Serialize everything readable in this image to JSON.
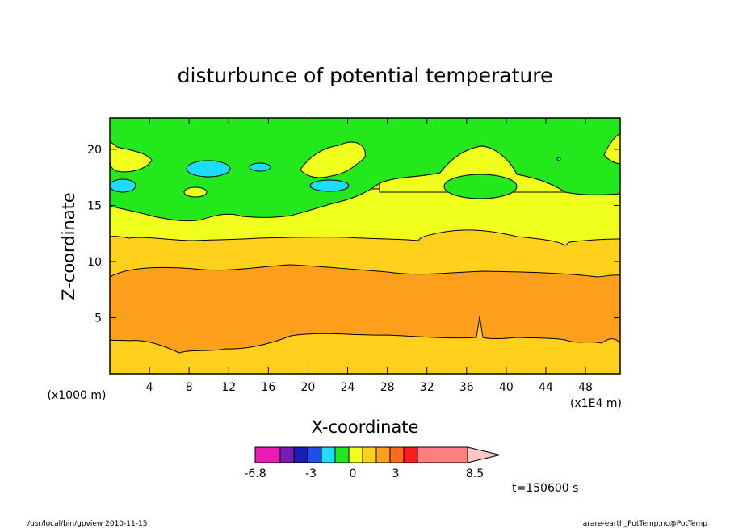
{
  "chart_data": {
    "type": "heatmap",
    "title": "disturbunce of potential temperature",
    "xlabel": "X-coordinate",
    "ylabel": "Z-coordinate",
    "x_unit": "(x1E4 m)",
    "y_unit": "(x1000 m)",
    "xlim": [
      0,
      51.5
    ],
    "ylim": [
      0,
      22.8
    ],
    "x_ticks": [
      4,
      8,
      12,
      16,
      20,
      24,
      28,
      32,
      36,
      40,
      44,
      48
    ],
    "y_ticks": [
      5,
      10,
      15,
      20
    ],
    "contour_levels_visible": [
      {
        "z": 3.2,
        "value": 4.5
      },
      {
        "z": 9.2,
        "value": 3
      },
      {
        "z": 12.1,
        "value": 1.5
      },
      {
        "z": 14.5,
        "value": 0
      }
    ],
    "colorbar": {
      "tick_labels": [
        "-6.8",
        "-3",
        "0",
        "3",
        "8.5"
      ],
      "colors": [
        "#e81cb4",
        "#7a1cb4",
        "#1c1cb4",
        "#1c50e8",
        "#1cdcff",
        "#22e81c",
        "#f0ff1c",
        "#ffd01c",
        "#ffa01c",
        "#ff6a1c",
        "#ff1c1c",
        "#ff7f7f",
        "#ffc8c8"
      ],
      "extend": "max"
    },
    "annotation_time": "t=150600 s",
    "footer_left": "/usr/local/bin/gpview   2010-11-15",
    "footer_right": "arare-earth_PotTemp.nc@PotTemp"
  }
}
